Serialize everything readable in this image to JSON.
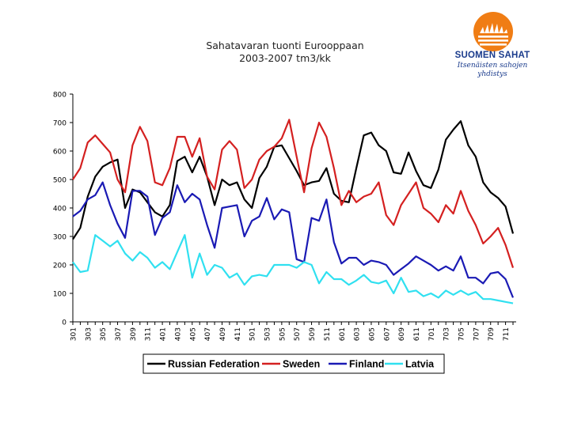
{
  "header": {
    "title_line1": "Sahatavaran tuonti Eurooppaan",
    "title_line2": "2003-2007 tm3/kk"
  },
  "logo": {
    "name": "SUOMEN SAHAT",
    "tagline_line1": "Itsenäisten sahojen",
    "tagline_line2": "yhdistys",
    "sun_color": "#f07d14",
    "text_color": "#1a3b8c"
  },
  "chart_data": {
    "type": "line",
    "title": "Sahatavaran tuonti Eurooppaan 2003-2007 tm3/kk",
    "xlabel": "",
    "ylabel": "",
    "ylim": [
      0,
      800
    ],
    "yticks": [
      0,
      100,
      200,
      300,
      400,
      500,
      600,
      700,
      800
    ],
    "grid": false,
    "legend_position": "bottom",
    "categories": [
      "301",
      "302",
      "303",
      "304",
      "305",
      "306",
      "307",
      "308",
      "309",
      "310",
      "311",
      "312",
      "401",
      "402",
      "403",
      "404",
      "405",
      "406",
      "407",
      "408",
      "409",
      "410",
      "411",
      "412",
      "501",
      "502",
      "503",
      "504",
      "505",
      "506",
      "507",
      "508",
      "509",
      "510",
      "511",
      "512",
      "601",
      "602",
      "603",
      "604",
      "605",
      "606",
      "607",
      "608",
      "609",
      "610",
      "611",
      "612",
      "701",
      "702",
      "703",
      "704",
      "705",
      "706",
      "707",
      "708",
      "709",
      "710",
      "711",
      "712"
    ],
    "tick_labels": [
      "301",
      "303",
      "305",
      "307",
      "309",
      "311",
      "401",
      "403",
      "405",
      "407",
      "409",
      "411",
      "501",
      "503",
      "505",
      "507",
      "509",
      "511",
      "601",
      "603",
      "605",
      "607",
      "609",
      "611",
      "701",
      "703",
      "705",
      "707",
      "709",
      "711"
    ],
    "series": [
      {
        "name": "Russian Federation",
        "color": "#000000",
        "values": [
          290,
          330,
          440,
          510,
          545,
          560,
          570,
          400,
          465,
          455,
          420,
          385,
          370,
          410,
          565,
          580,
          525,
          580,
          510,
          410,
          500,
          480,
          490,
          430,
          400,
          505,
          545,
          615,
          620,
          575,
          530,
          480,
          490,
          495,
          540,
          450,
          425,
          420,
          540,
          655,
          665,
          620,
          600,
          525,
          520,
          595,
          530,
          480,
          470,
          535,
          640,
          675,
          705,
          620,
          580,
          490,
          455,
          435,
          405,
          310
        ]
      },
      {
        "name": "Sweden",
        "color": "#d42020",
        "values": [
          500,
          540,
          630,
          655,
          625,
          595,
          500,
          455,
          620,
          685,
          635,
          490,
          480,
          540,
          650,
          650,
          580,
          645,
          510,
          465,
          605,
          635,
          605,
          470,
          500,
          570,
          600,
          615,
          645,
          710,
          580,
          455,
          610,
          700,
          650,
          540,
          410,
          460,
          420,
          440,
          450,
          490,
          375,
          340,
          410,
          450,
          490,
          400,
          380,
          350,
          410,
          380,
          460,
          390,
          340,
          275,
          300,
          330,
          270,
          190
        ]
      },
      {
        "name": "Finland",
        "color": "#1a1ab4",
        "values": [
          370,
          390,
          430,
          445,
          490,
          410,
          345,
          295,
          460,
          460,
          440,
          305,
          365,
          385,
          480,
          420,
          450,
          430,
          340,
          260,
          400,
          405,
          410,
          300,
          355,
          370,
          435,
          360,
          395,
          385,
          220,
          210,
          365,
          355,
          430,
          280,
          205,
          225,
          225,
          200,
          215,
          210,
          200,
          165,
          185,
          205,
          230,
          215,
          200,
          180,
          195,
          180,
          230,
          155,
          155,
          135,
          170,
          175,
          150,
          85
        ]
      },
      {
        "name": "Latvia",
        "color": "#30e0f0",
        "values": [
          210,
          175,
          180,
          305,
          285,
          265,
          285,
          240,
          215,
          245,
          225,
          190,
          210,
          185,
          245,
          305,
          155,
          240,
          165,
          200,
          190,
          155,
          170,
          130,
          160,
          165,
          160,
          200,
          200,
          200,
          190,
          210,
          200,
          135,
          175,
          150,
          150,
          130,
          145,
          165,
          140,
          135,
          145,
          100,
          155,
          105,
          110,
          90,
          100,
          85,
          110,
          95,
          110,
          95,
          105,
          80,
          80,
          75,
          70,
          65
        ]
      }
    ]
  }
}
